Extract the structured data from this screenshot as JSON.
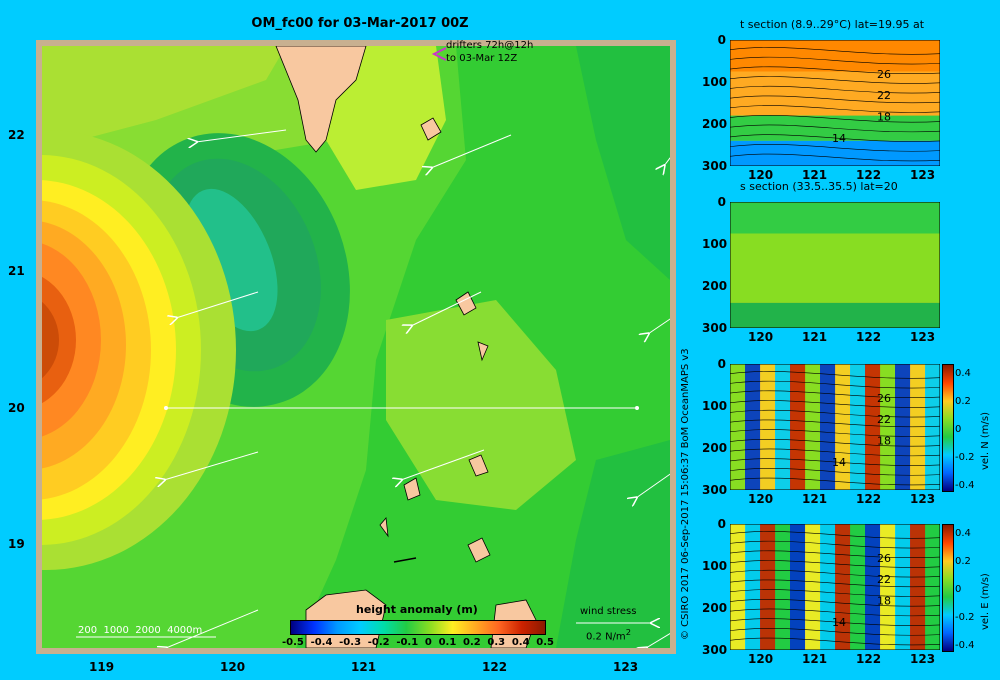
{
  "map": {
    "title": "OM_fc00 for 03-Mar-2017 00Z",
    "drifters_line1": "drifters 72h@12h",
    "drifters_line2": "to 03-Mar 12Z",
    "lat_ticks": [
      "22",
      "21",
      "20",
      "19"
    ],
    "lon_ticks": [
      "119",
      "120",
      "121",
      "122",
      "123"
    ],
    "depth_legend": [
      "200",
      "1000",
      "2000",
      "4000m"
    ],
    "colorbar_title": "height anomaly (m)",
    "colorbar_ticks": [
      "-0.5",
      "-0.4",
      "-0.3",
      "-0.2",
      "-0.1",
      "0",
      "0.1",
      "0.2",
      "0.3",
      "0.4",
      "0.5"
    ],
    "wind_label1": "wind stress",
    "wind_label2": "0.2 N/m",
    "wind_sup": "2",
    "land_color": "#f8c8a0",
    "frame_color": "#c8b090"
  },
  "credit": "© CSIRO 2017   06-Sep-2017 15:06:37 BoM OceanMAPS v3",
  "panels": [
    {
      "title": "t section (8.9..29°C) lat=19.95 at",
      "xticks": [
        "120",
        "121",
        "122",
        "123"
      ],
      "yticks": [
        "0",
        "100",
        "200",
        "300"
      ],
      "contours": [
        "26",
        "22",
        "18",
        "14"
      ],
      "cbar_label": "",
      "cbar_ticks": []
    },
    {
      "title": "s section (33.5..35.5) lat=20",
      "xticks": [
        "120",
        "121",
        "122",
        "123"
      ],
      "yticks": [
        "0",
        "100",
        "200",
        "300"
      ],
      "contours": [],
      "cbar_label": "",
      "cbar_ticks": []
    },
    {
      "title": "",
      "xticks": [
        "120",
        "121",
        "122",
        "123"
      ],
      "yticks": [
        "0",
        "100",
        "200",
        "300"
      ],
      "contours": [
        "26",
        "22",
        "18",
        "14"
      ],
      "cbar_label": "vel. N (m/s)",
      "cbar_ticks": [
        "0.4",
        "0.2",
        "0",
        "-0.2",
        "-0.4"
      ]
    },
    {
      "title": "",
      "xticks": [
        "120",
        "121",
        "122",
        "123"
      ],
      "yticks": [
        "0",
        "100",
        "200",
        "300"
      ],
      "contours": [
        "26",
        "22",
        "18",
        "14"
      ],
      "cbar_label": "vel. E (m/s)",
      "cbar_ticks": [
        "0.4",
        "0.2",
        "0",
        "-0.2",
        "-0.4"
      ]
    }
  ]
}
